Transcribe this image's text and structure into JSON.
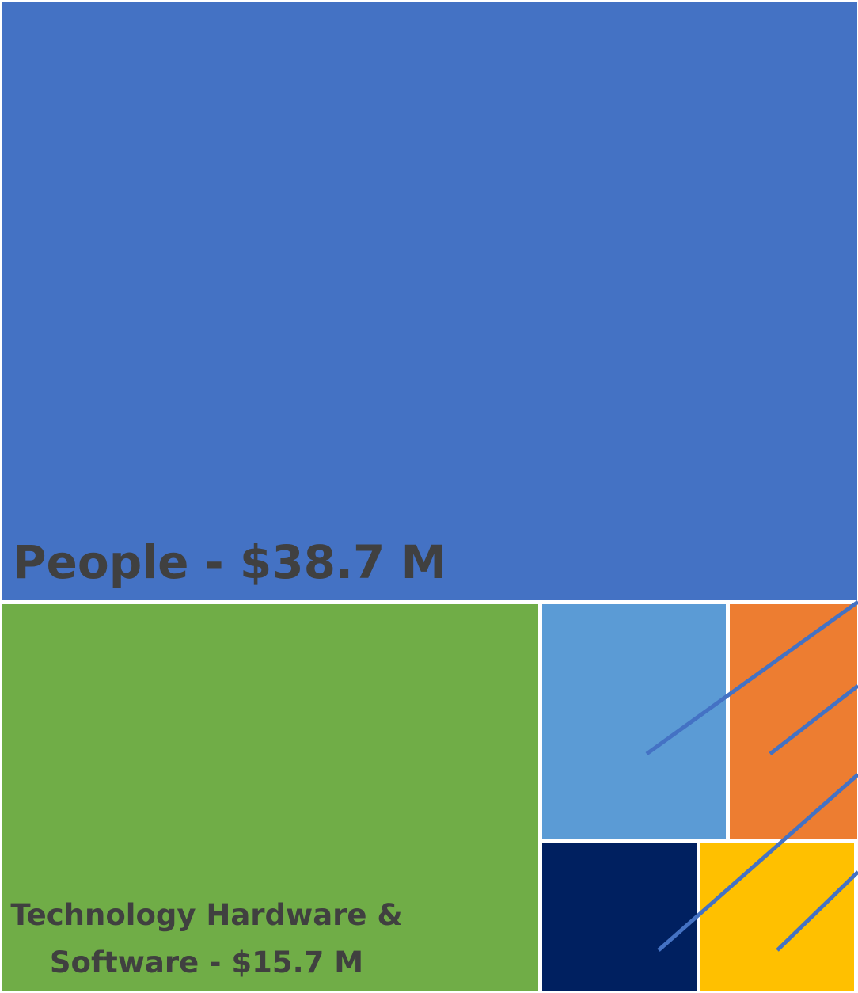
{
  "chart_data": {
    "type": "treemap",
    "title": "",
    "items": [
      {
        "name": "People",
        "value": 38.7,
        "label": "People - $38.7 M",
        "color": "#4472C4"
      },
      {
        "name": "Technology Hardware & Software",
        "value": 15.7,
        "label_lines": [
          "Technology Hardware &",
          "Software - $15.7 M"
        ],
        "color": "#70AD47"
      },
      {
        "name": "",
        "value": 4.2,
        "label": "",
        "color": "#5B9BD5"
      },
      {
        "name": "",
        "value": 3.0,
        "label": "",
        "color": "#ED7D31"
      },
      {
        "name": "",
        "value": 2.1,
        "label": "",
        "color": "#002060"
      },
      {
        "name": "",
        "value": 2.2,
        "label": "",
        "color": "#FFC000"
      }
    ],
    "leader_line_color": "#4472C4",
    "border_color": "#FFFFFF"
  }
}
